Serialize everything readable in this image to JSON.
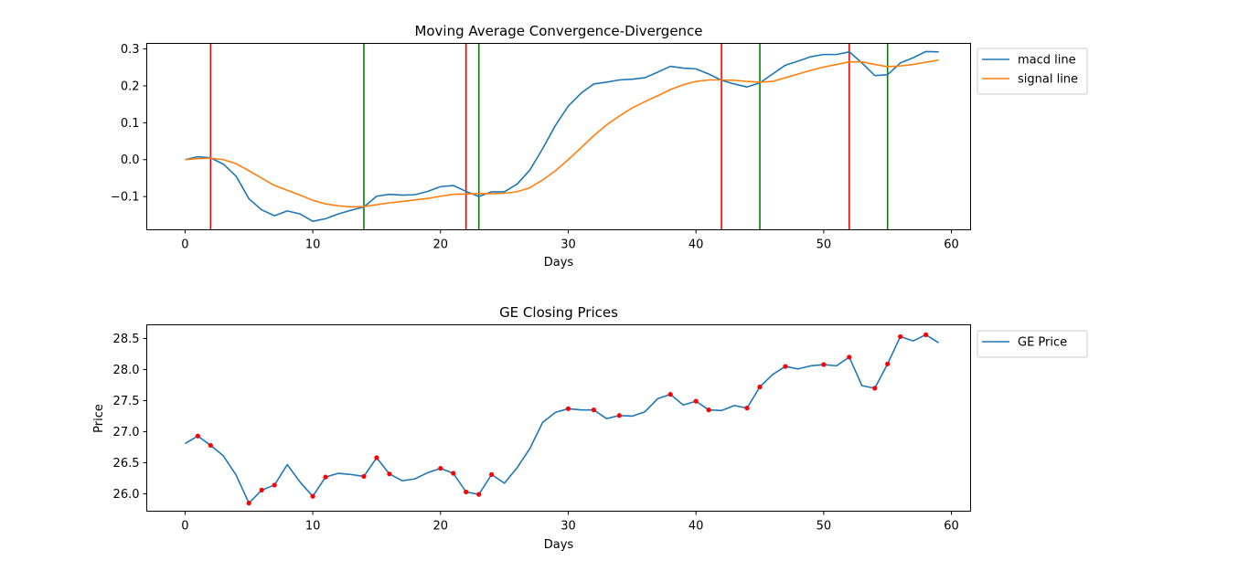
{
  "chart_data": [
    {
      "type": "line",
      "title": "Moving Average Convergence-Divergence",
      "xlabel": "Days",
      "ylabel": "",
      "xlim": [
        -3,
        61.5
      ],
      "ylim": [
        -0.19,
        0.315
      ],
      "xticks": [
        0,
        10,
        20,
        30,
        40,
        50,
        60
      ],
      "yticks": [
        -0.1,
        0.0,
        0.1,
        0.2,
        0.3
      ],
      "ytick_labels": [
        "−0.1",
        "0.0",
        "0.1",
        "0.2",
        "0.3"
      ],
      "legend_position": "upper right, outside plot",
      "x": [
        0,
        1,
        2,
        3,
        4,
        5,
        6,
        7,
        8,
        9,
        10,
        11,
        12,
        13,
        14,
        15,
        16,
        17,
        18,
        19,
        20,
        21,
        22,
        23,
        24,
        25,
        26,
        27,
        28,
        29,
        30,
        31,
        32,
        33,
        34,
        35,
        36,
        37,
        38,
        39,
        40,
        41,
        42,
        43,
        44,
        45,
        46,
        47,
        48,
        49,
        50,
        51,
        52,
        53,
        54,
        55,
        56,
        57,
        58,
        59
      ],
      "series": [
        {
          "name": "macd line",
          "color": "#1f77b4",
          "values": [
            0.0,
            0.008,
            0.005,
            -0.012,
            -0.045,
            -0.106,
            -0.136,
            -0.152,
            -0.139,
            -0.147,
            -0.167,
            -0.16,
            -0.147,
            -0.137,
            -0.128,
            -0.099,
            -0.094,
            -0.096,
            -0.095,
            -0.086,
            -0.073,
            -0.07,
            -0.086,
            -0.1,
            -0.087,
            -0.087,
            -0.066,
            -0.028,
            0.03,
            0.093,
            0.145,
            0.18,
            0.205,
            0.21,
            0.216,
            0.218,
            0.222,
            0.237,
            0.253,
            0.248,
            0.246,
            0.232,
            0.215,
            0.205,
            0.197,
            0.208,
            0.232,
            0.256,
            0.267,
            0.279,
            0.285,
            0.285,
            0.292,
            0.262,
            0.228,
            0.23,
            0.262,
            0.276,
            0.293,
            0.292
          ]
        },
        {
          "name": "signal line",
          "color": "#ff7f0e",
          "values": [
            0.0,
            0.003,
            0.004,
            0.0,
            -0.011,
            -0.03,
            -0.05,
            -0.07,
            -0.083,
            -0.096,
            -0.11,
            -0.12,
            -0.125,
            -0.128,
            -0.127,
            -0.122,
            -0.117,
            -0.113,
            -0.109,
            -0.105,
            -0.099,
            -0.094,
            -0.093,
            -0.092,
            -0.092,
            -0.091,
            -0.087,
            -0.076,
            -0.055,
            -0.03,
            0.0,
            0.032,
            0.065,
            0.094,
            0.118,
            0.14,
            0.157,
            0.173,
            0.19,
            0.203,
            0.212,
            0.216,
            0.216,
            0.215,
            0.212,
            0.21,
            0.212,
            0.222,
            0.232,
            0.242,
            0.251,
            0.258,
            0.265,
            0.265,
            0.258,
            0.252,
            0.254,
            0.258,
            0.264,
            0.27
          ]
        }
      ],
      "vlines": [
        {
          "x": 2,
          "color": "#ff0000"
        },
        {
          "x": 14,
          "color": "#008000"
        },
        {
          "x": 22,
          "color": "#ff0000"
        },
        {
          "x": 23,
          "color": "#008000"
        },
        {
          "x": 42,
          "color": "#ff0000"
        },
        {
          "x": 45,
          "color": "#008000"
        },
        {
          "x": 52,
          "color": "#ff0000"
        },
        {
          "x": 55,
          "color": "#008000"
        }
      ]
    },
    {
      "type": "line",
      "title": "GE Closing Prices",
      "xlabel": "Days",
      "ylabel": "Price",
      "xlim": [
        -3,
        61.5
      ],
      "ylim": [
        25.72,
        28.72
      ],
      "xticks": [
        0,
        10,
        20,
        30,
        40,
        50,
        60
      ],
      "yticks": [
        26.0,
        26.5,
        27.0,
        27.5,
        28.0,
        28.5
      ],
      "ytick_labels": [
        "26.0",
        "26.5",
        "27.0",
        "27.5",
        "28.0",
        "28.5"
      ],
      "legend_position": "upper right, outside plot",
      "x": [
        0,
        1,
        2,
        3,
        4,
        5,
        6,
        7,
        8,
        9,
        10,
        11,
        12,
        13,
        14,
        15,
        16,
        17,
        18,
        19,
        20,
        21,
        22,
        23,
        24,
        25,
        26,
        27,
        28,
        29,
        30,
        31,
        32,
        33,
        34,
        35,
        36,
        37,
        38,
        39,
        40,
        41,
        42,
        43,
        44,
        45,
        46,
        47,
        48,
        49,
        50,
        51,
        52,
        53,
        54,
        55,
        56,
        57,
        58,
        59
      ],
      "series": [
        {
          "name": "GE Price",
          "color": "#1f77b4",
          "values": [
            26.81,
            26.93,
            26.78,
            26.61,
            26.3,
            25.85,
            26.06,
            26.14,
            26.47,
            26.19,
            25.96,
            26.27,
            26.33,
            26.31,
            26.28,
            26.58,
            26.32,
            26.21,
            26.24,
            26.34,
            26.41,
            26.33,
            26.03,
            25.99,
            26.31,
            26.17,
            26.42,
            26.73,
            27.15,
            27.31,
            27.37,
            27.35,
            27.35,
            27.21,
            27.26,
            27.25,
            27.32,
            27.53,
            27.6,
            27.43,
            27.49,
            27.35,
            27.34,
            27.42,
            27.38,
            27.72,
            27.92,
            28.05,
            28.01,
            28.06,
            28.08,
            28.06,
            28.2,
            27.74,
            27.7,
            28.09,
            28.53,
            28.46,
            28.56,
            28.43
          ]
        }
      ],
      "markers": {
        "color": "#ff0000",
        "x": [
          1,
          2,
          5,
          6,
          7,
          10,
          11,
          14,
          15,
          16,
          20,
          21,
          22,
          23,
          24,
          30,
          32,
          34,
          38,
          40,
          41,
          44,
          45,
          47,
          50,
          52,
          54,
          55,
          56,
          58
        ]
      }
    }
  ]
}
